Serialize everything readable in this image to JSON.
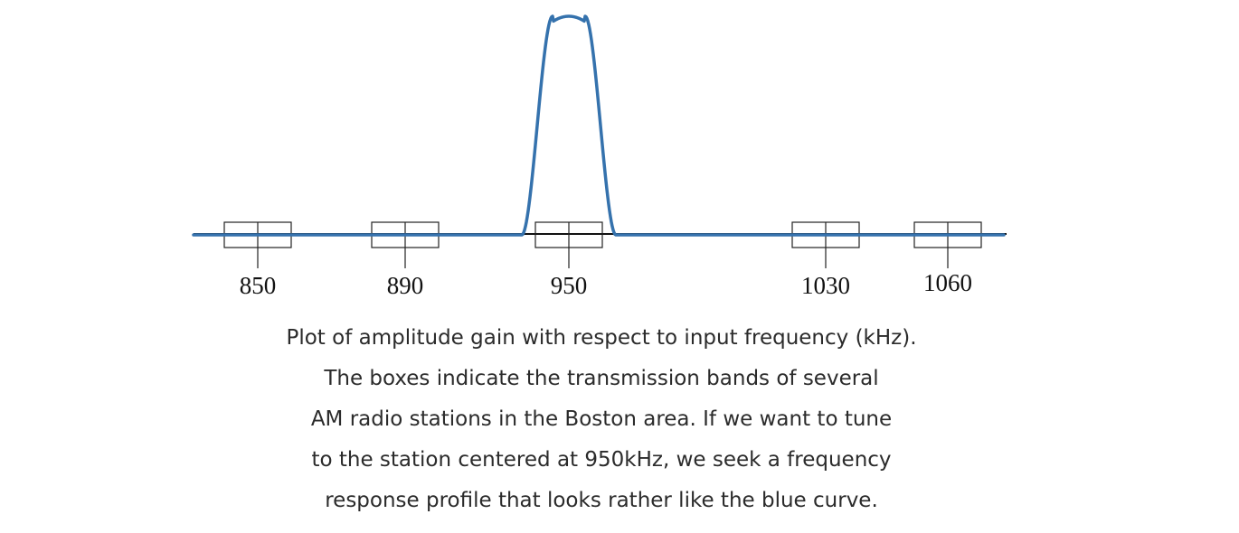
{
  "figure": {
    "stations": [
      {
        "label": "850",
        "freq": 850
      },
      {
        "label": "890",
        "freq": 890
      },
      {
        "label": "950",
        "freq": 950
      },
      {
        "label": "1030",
        "freq": 1030
      },
      {
        "label": "1060",
        "freq": 1060
      }
    ],
    "curve_color": "#3572ad",
    "box_color": "#222222"
  },
  "caption": {
    "lines": [
      "Plot of amplitude gain with respect to input frequency (kHz).",
      "The boxes indicate the transmission bands of several",
      "AM radio stations in the Boston area. If we want to tune",
      "to the station centered at 950kHz, we seek a frequency",
      "response profile that looks rather like the blue curve."
    ]
  }
}
